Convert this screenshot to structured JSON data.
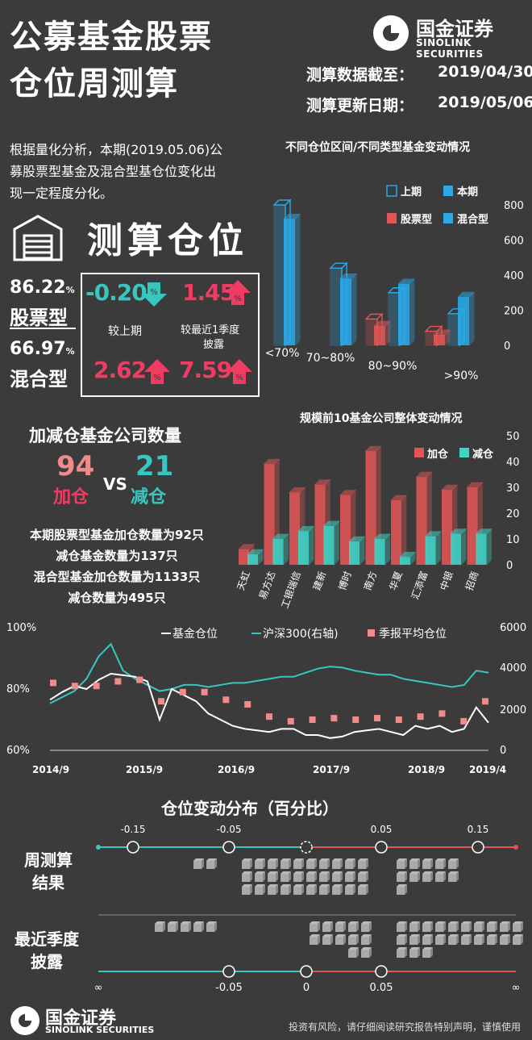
{
  "header": {
    "title_line1": "公募基金股票",
    "title_line2": "仓位周测算",
    "brand_cn": "国金证券",
    "brand_en": "SINOLINK SECURITIES",
    "data_cutoff_label": "测算数据截至：",
    "data_cutoff_value": "2019/04/30",
    "update_label": "测算更新日期：",
    "update_value": "2019/05/06"
  },
  "intro": {
    "text_line1": "根据量化分析，本期(2019.05.06)公",
    "text_line2": "募股票型基金及混合型基仓位变化出",
    "text_line3": "现一定程度分化。"
  },
  "position": {
    "heading": "测算仓位",
    "stock_value": "86.22",
    "stock_unit": "%",
    "stock_label": "股票型",
    "mixed_value": "66.97",
    "mixed_unit": "%",
    "mixed_label": "混合型",
    "stock_vs_last": "-0.20",
    "stock_vs_disclosure": "1.45",
    "mixed_vs_last": "2.62",
    "mixed_vs_disclosure": "7.59",
    "label_vs_last": "较上期",
    "label_vs_disclosure_1": "较最近1季度",
    "label_vs_disclosure_2": "披露",
    "pct_badge": "%"
  },
  "colors": {
    "bg": "#3b3b3b",
    "pink": "#f03c63",
    "teal": "#38c7c0",
    "red_bar": "#e05555",
    "blue_bar": "#2aa8e8",
    "line_white": "#ffffff"
  },
  "companies": {
    "heading": "加减仓基金公司数量",
    "add_count": "94",
    "add_label": "加仓",
    "vs": "VS",
    "reduce_count": "21",
    "reduce_label": "减仓",
    "note_line1": "本期股票型基金加仓数量为92只",
    "note_line2": "减仓基金数量为137只",
    "note_line3": "混合型基金加仓数量为1133只",
    "note_line4": "减仓数量为495只"
  },
  "chart_data": [
    {
      "type": "bar",
      "title": "不同仓位区间/不同类型基金变动情况",
      "categories": [
        "<70%",
        "70~80%",
        "80~90%",
        ">90%"
      ],
      "ylim": [
        0,
        800
      ],
      "yticks": [
        "0",
        "200",
        "400",
        "600",
        "800"
      ],
      "legend": [
        "上期",
        "本期",
        "股票型",
        "混合型"
      ],
      "series": [
        {
          "name": "上期",
          "type_group": "股票型",
          "values": [
            0,
            0,
            150,
            80
          ]
        },
        {
          "name": "本期",
          "type_group": "股票型",
          "values": [
            0,
            0,
            110,
            60
          ]
        },
        {
          "name": "上期",
          "type_group": "混合型",
          "values": [
            800,
            440,
            300,
            180
          ]
        },
        {
          "name": "本期",
          "type_group": "混合型",
          "values": [
            720,
            380,
            350,
            275
          ]
        }
      ]
    },
    {
      "type": "bar",
      "title": "规模前10基金公司整体变动情况",
      "categories": [
        "天虹",
        "易方达",
        "工银瑞信",
        "建新",
        "博时",
        "南方",
        "华夏",
        "汇添富",
        "中银",
        "招商"
      ],
      "ylim": [
        0,
        50
      ],
      "yticks": [
        "0",
        "10",
        "20",
        "30",
        "40",
        "50"
      ],
      "series": [
        {
          "name": "加仓",
          "values": [
            6,
            39,
            28,
            31,
            27,
            44,
            25,
            34,
            29,
            30
          ]
        },
        {
          "name": "减仓",
          "values": [
            4,
            10,
            13,
            15,
            9,
            10,
            3,
            11,
            12,
            12
          ]
        }
      ]
    },
    {
      "type": "line",
      "x_tick_labels": [
        "2014/9",
        "2015/9",
        "2016/9",
        "2017/9",
        "2018/9",
        "2019/4"
      ],
      "y_left_ticks": [
        "100%",
        "80%",
        "60%"
      ],
      "y_right_ticks": [
        "6000",
        "4000",
        "2000",
        "0"
      ],
      "legend": [
        "基金仓位",
        "沪深300(右轴)",
        "季报平均仓位"
      ],
      "series": [
        {
          "name": "基金仓位",
          "axis": "left",
          "values": [
            0.765,
            0.79,
            0.81,
            0.8,
            0.83,
            0.85,
            0.845,
            0.84,
            0.825,
            0.7,
            0.8,
            0.78,
            0.76,
            0.72,
            0.7,
            0.68,
            0.67,
            0.665,
            0.66,
            0.67,
            0.67,
            0.65,
            0.65,
            0.64,
            0.645,
            0.66,
            0.665,
            0.67,
            0.66,
            0.65,
            0.68,
            0.67,
            0.68,
            0.66,
            0.67,
            0.74,
            0.69
          ]
        },
        {
          "name": "沪深300(右轴)",
          "axis": "right",
          "values": [
            2300,
            2600,
            2900,
            3500,
            4600,
            5200,
            3900,
            3500,
            3200,
            2900,
            3000,
            3200,
            3200,
            3100,
            3200,
            3300,
            3300,
            3400,
            3500,
            3600,
            3600,
            3800,
            4000,
            4100,
            4050,
            3900,
            3800,
            3700,
            3700,
            3500,
            3400,
            3300,
            3200,
            3100,
            3200,
            3900,
            3800
          ]
        },
        {
          "name": "季报平均仓位",
          "axis": "left",
          "values": [
            0.82,
            0.81,
            0.81,
            0.825,
            0.83,
            0.76,
            0.79,
            0.79,
            0.765,
            0.75,
            0.71,
            0.695,
            0.7,
            0.705,
            0.7,
            0.705,
            0.7,
            0.71,
            0.72,
            0.695,
            0.76
          ]
        }
      ]
    }
  ],
  "distribution": {
    "heading": "仓位变动分布（百分比）",
    "row1_label_1": "周测算",
    "row1_label_2": "结果",
    "row2_label_1": "最近季度",
    "row2_label_2": "披露",
    "top_ticks": [
      "-0.15",
      "-0.05",
      "0.05",
      "0.15"
    ],
    "bottom_ticks": [
      "∞",
      "-0.05",
      "0",
      "0.05",
      "∞"
    ]
  },
  "footer": {
    "brand_cn": "国金证券",
    "brand_en": "SINOLINK SECURITIES",
    "disclaimer": "投资有风险，请仔细阅读研究报告特别声明，谨慎使用"
  }
}
